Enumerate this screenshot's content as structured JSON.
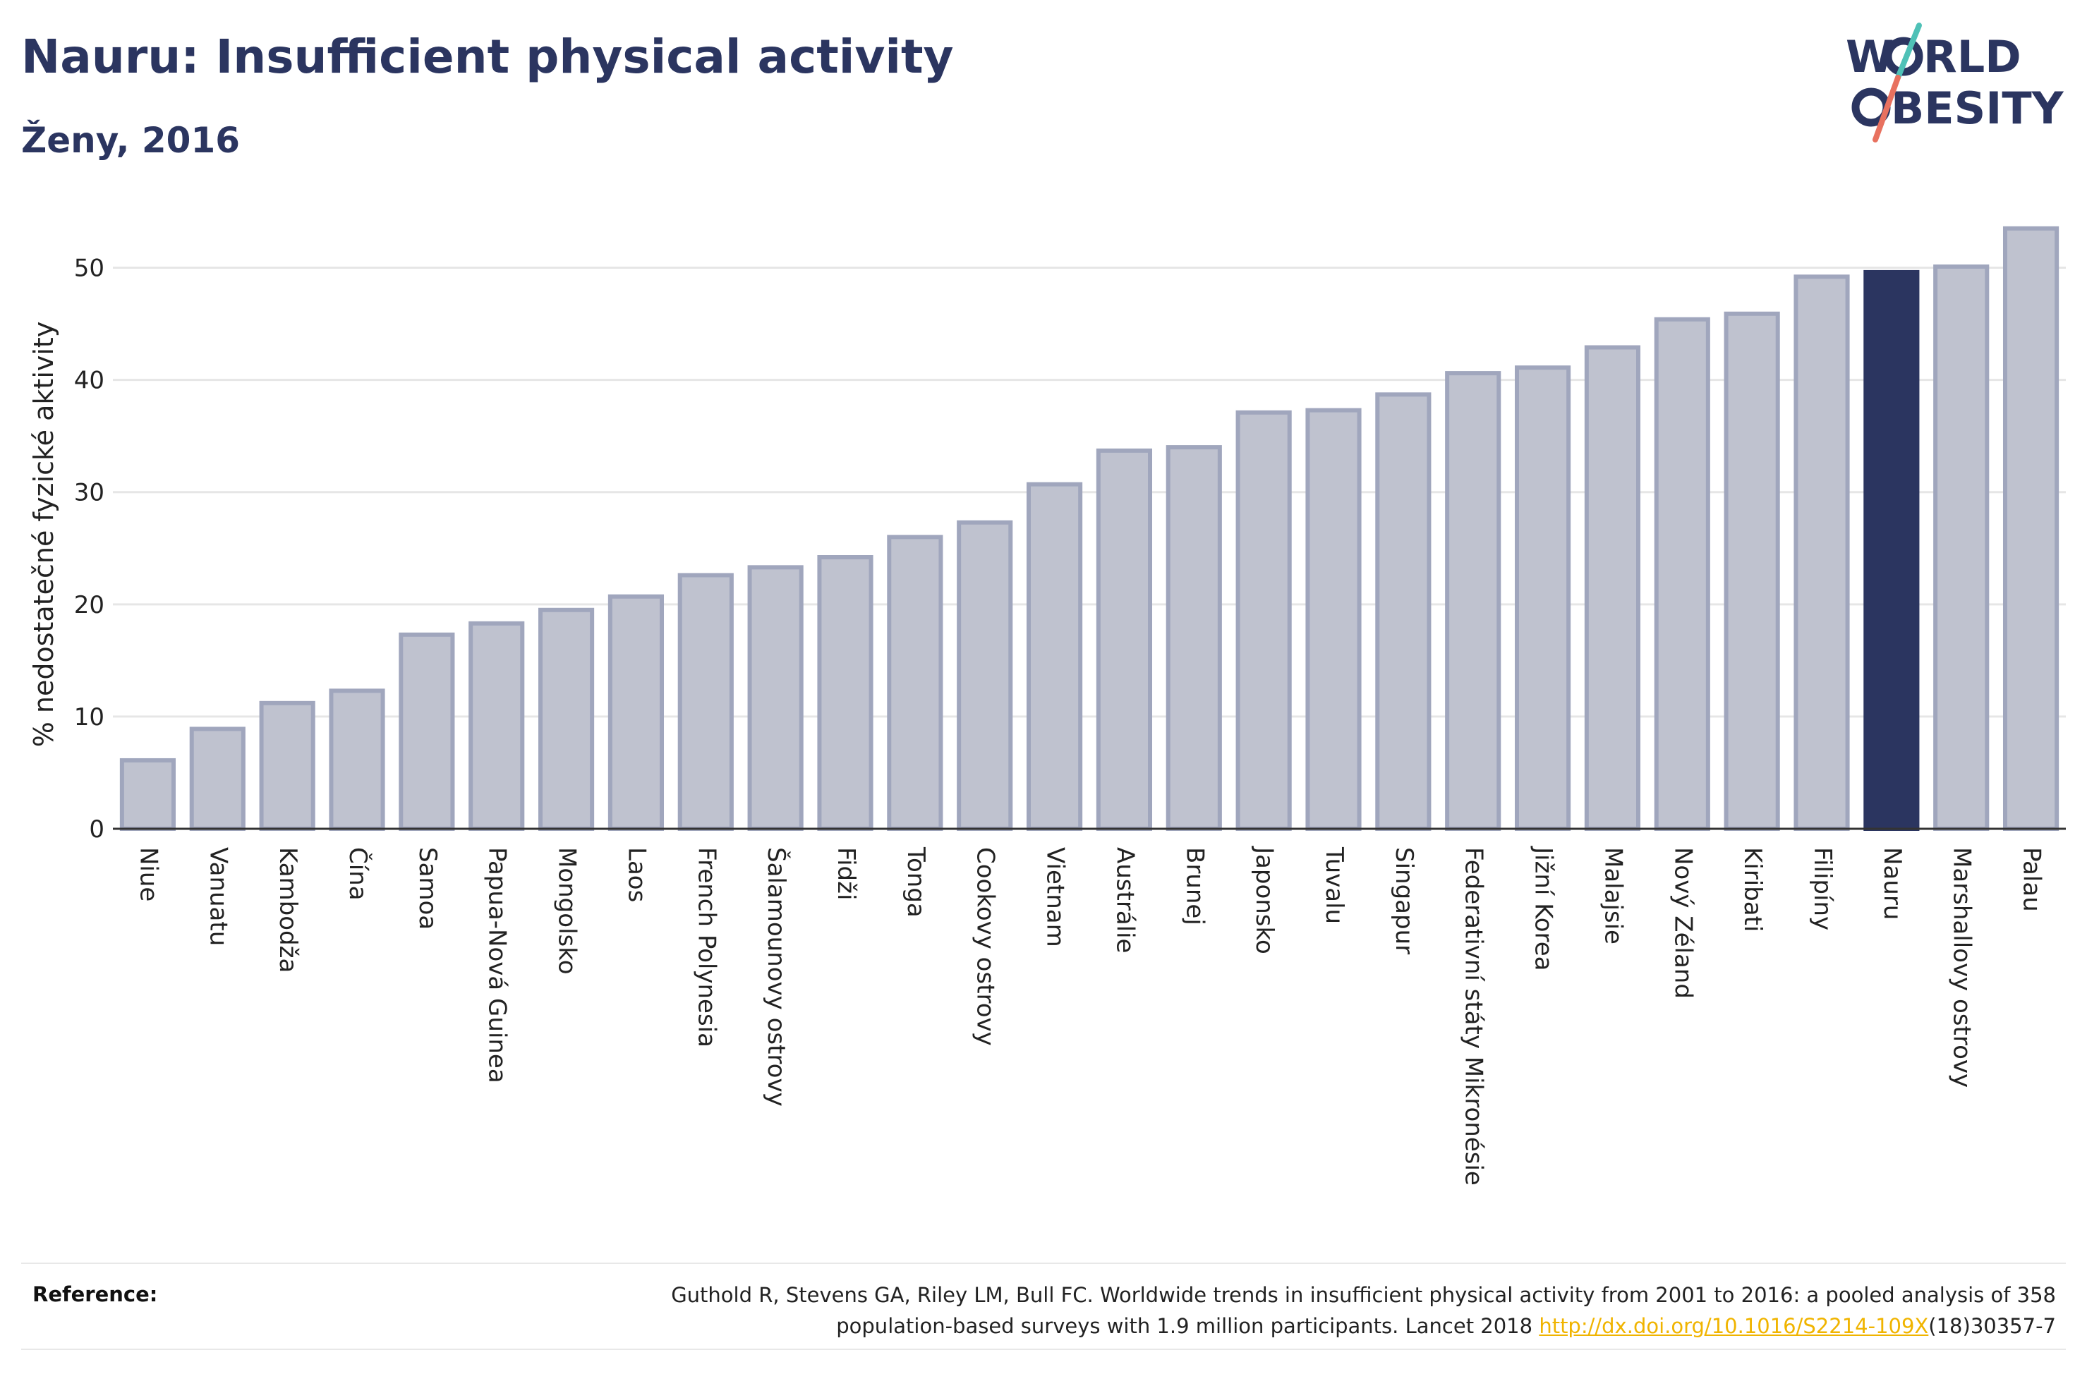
{
  "header": {
    "title": "Nauru: Insufficient physical activity",
    "subtitle": "Ženy, 2016"
  },
  "logo": {
    "line1": "W",
    "line1b": "RLD",
    "line2": "BESITY",
    "text_color": "#2b3560",
    "slash_colors": [
      "#4fc1b7",
      "#e8715f"
    ]
  },
  "chart_data": {
    "type": "bar",
    "ylabel": "% nedostatečné fyzické aktivity",
    "xlabel": "",
    "ylim": [
      0,
      55
    ],
    "yticks": [
      0,
      10,
      20,
      30,
      40,
      50
    ],
    "grid": true,
    "highlight": "Nauru",
    "colors": {
      "bar": "#bfc2cf",
      "bar_border": "#a0a6bd",
      "highlight": "#2b3560",
      "grid": "#e6e6e6"
    },
    "categories": [
      "Niue",
      "Vanuatu",
      "Kambodža",
      "Čína",
      "Samoa",
      "Papua-Nová Guinea",
      "Mongolsko",
      "Laos",
      "French Polynesia",
      "Šalamounovy ostrovy",
      "Fidži",
      "Tonga",
      "Cookovy ostrovy",
      "Vietnam",
      "Austrálie",
      "Brunej",
      "Japonsko",
      "Tuvalu",
      "Singapur",
      "Federativní státy Mikronésie",
      "Jižní Korea",
      "Malajsie",
      "Nový Zéland",
      "Kiribati",
      "Filipíny",
      "Nauru",
      "Marshallovy ostrovy",
      "Palau"
    ],
    "values": [
      6.1,
      8.9,
      11.2,
      12.3,
      17.3,
      18.3,
      19.5,
      20.7,
      22.6,
      23.3,
      24.2,
      26.0,
      27.3,
      30.7,
      33.7,
      34.0,
      37.1,
      37.3,
      38.7,
      40.6,
      41.1,
      42.9,
      45.4,
      45.9,
      49.2,
      49.6,
      50.1,
      53.5
    ]
  },
  "footer": {
    "reference_label": "Reference:",
    "reference_text_1": "Guthold R, Stevens GA, Riley LM, Bull FC. Worldwide trends in insufficient physical activity from 2001 to 2016: a pooled analysis of 358",
    "reference_text_2": "population-based surveys with 1.9 million participants. Lancet 2018 ",
    "reference_link": "http://dx.doi.org/10.1016/S2214-109X",
    "reference_text_3": "(18)30357-7"
  }
}
